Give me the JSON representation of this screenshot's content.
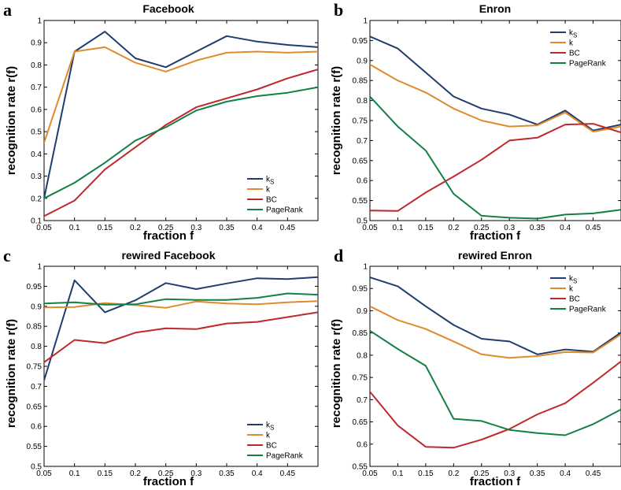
{
  "colors": {
    "ks": "#1f3e6e",
    "k": "#e08a2e",
    "BC": "#c0282b",
    "PageRank": "#138045"
  },
  "chart_data": [
    {
      "panel": "a",
      "type": "line",
      "title": "Facebook",
      "xlabel": "fraction f",
      "ylabel": "recognition rate r(f)",
      "xlim": [
        0.05,
        0.5
      ],
      "ylim": [
        0.1,
        1.0
      ],
      "xticks": [
        "0.05",
        "0.1",
        "0.15",
        "0.2",
        "0.25",
        "0.3",
        "0.35",
        "0.4",
        "0.45"
      ],
      "yticks": [
        "0.1",
        "0.2",
        "0.3",
        "0.4",
        "0.5",
        "0.6",
        "0.7",
        "0.8",
        "0.9",
        "1"
      ],
      "legend_position": "bottom-right",
      "x": [
        0.05,
        0.1,
        0.15,
        0.2,
        0.25,
        0.3,
        0.35,
        0.4,
        0.45,
        0.5
      ],
      "series": [
        {
          "name": "k",
          "sub": "S",
          "key": "ks",
          "values": [
            0.2,
            0.86,
            0.95,
            0.83,
            0.79,
            0.86,
            0.93,
            0.905,
            0.89,
            0.88
          ]
        },
        {
          "name": "k",
          "sub": "",
          "key": "k",
          "values": [
            0.45,
            0.86,
            0.88,
            0.81,
            0.77,
            0.82,
            0.855,
            0.86,
            0.855,
            0.86
          ]
        },
        {
          "name": "BC",
          "sub": "",
          "key": "BC",
          "values": [
            0.12,
            0.19,
            0.33,
            0.43,
            0.53,
            0.61,
            0.65,
            0.69,
            0.74,
            0.78
          ]
        },
        {
          "name": "PageRank",
          "sub": "",
          "key": "PageRank",
          "values": [
            0.2,
            0.27,
            0.36,
            0.46,
            0.52,
            0.595,
            0.635,
            0.66,
            0.675,
            0.7
          ]
        }
      ]
    },
    {
      "panel": "b",
      "type": "line",
      "title": "Enron",
      "xlabel": "fraction f",
      "ylabel": "recognition rate r(f)",
      "xlim": [
        0.05,
        0.5
      ],
      "ylim": [
        0.5,
        1.0
      ],
      "xticks": [
        "0.05",
        "0.1",
        "0.15",
        "0.2",
        "0.25",
        "0.3",
        "0.35",
        "0.4",
        "0.45"
      ],
      "yticks": [
        "0.5",
        "0.55",
        "0.6",
        "0.65",
        "0.7",
        "0.75",
        "0.8",
        "0.85",
        "0.9",
        "0.95",
        "1"
      ],
      "legend_position": "top-right",
      "x": [
        0.05,
        0.1,
        0.15,
        0.2,
        0.25,
        0.3,
        0.35,
        0.4,
        0.45,
        0.5
      ],
      "series": [
        {
          "name": "k",
          "sub": "S",
          "key": "ks",
          "values": [
            0.96,
            0.93,
            0.87,
            0.81,
            0.78,
            0.765,
            0.74,
            0.775,
            0.725,
            0.74
          ]
        },
        {
          "name": "k",
          "sub": "",
          "key": "k",
          "values": [
            0.89,
            0.85,
            0.82,
            0.78,
            0.75,
            0.735,
            0.738,
            0.77,
            0.722,
            0.735
          ]
        },
        {
          "name": "BC",
          "sub": "",
          "key": "BC",
          "values": [
            0.525,
            0.524,
            0.57,
            0.61,
            0.652,
            0.7,
            0.707,
            0.74,
            0.742,
            0.72
          ]
        },
        {
          "name": "PageRank",
          "sub": "",
          "key": "PageRank",
          "values": [
            0.81,
            0.735,
            0.675,
            0.567,
            0.512,
            0.507,
            0.505,
            0.515,
            0.518,
            0.527
          ]
        }
      ]
    },
    {
      "panel": "c",
      "type": "line",
      "title": "rewired Facebook",
      "xlabel": "fraction f",
      "ylabel": "recognition rate r(f)",
      "xlim": [
        0.05,
        0.5
      ],
      "ylim": [
        0.5,
        1.0
      ],
      "xticks": [
        "0.05",
        "0.1",
        "0.15",
        "0.2",
        "0.25",
        "0.3",
        "0.35",
        "0.4",
        "0.45"
      ],
      "yticks": [
        "0.5",
        "0.55",
        "0.6",
        "0.65",
        "0.7",
        "0.75",
        "0.8",
        "0.85",
        "0.9",
        "0.95",
        "1"
      ],
      "legend_position": "bottom-right",
      "x": [
        0.05,
        0.1,
        0.15,
        0.2,
        0.25,
        0.3,
        0.35,
        0.4,
        0.45,
        0.5
      ],
      "series": [
        {
          "name": "k",
          "sub": "S",
          "key": "ks",
          "values": [
            0.715,
            0.965,
            0.885,
            0.915,
            0.958,
            0.943,
            0.957,
            0.97,
            0.968,
            0.973
          ]
        },
        {
          "name": "k",
          "sub": "",
          "key": "k",
          "values": [
            0.897,
            0.898,
            0.908,
            0.903,
            0.896,
            0.912,
            0.907,
            0.905,
            0.91,
            0.913
          ]
        },
        {
          "name": "BC",
          "sub": "",
          "key": "BC",
          "values": [
            0.76,
            0.816,
            0.808,
            0.834,
            0.845,
            0.843,
            0.857,
            0.861,
            0.873,
            0.885
          ]
        },
        {
          "name": "PageRank",
          "sub": "",
          "key": "PageRank",
          "values": [
            0.907,
            0.91,
            0.904,
            0.905,
            0.918,
            0.916,
            0.916,
            0.921,
            0.932,
            0.929
          ]
        }
      ]
    },
    {
      "panel": "d",
      "type": "line",
      "title": "rewired Enron",
      "xlabel": "fraction f",
      "ylabel": "recognition rate r(f)",
      "xlim": [
        0.05,
        0.5
      ],
      "ylim": [
        0.55,
        1.0
      ],
      "xticks": [
        "0.05",
        "0.1",
        "0.15",
        "0.2",
        "0.25",
        "0.3",
        "0.35",
        "0.4",
        "0.45"
      ],
      "yticks": [
        "0.55",
        "0.6",
        "0.65",
        "0.7",
        "0.75",
        "0.8",
        "0.85",
        "0.9",
        "0.95",
        "1"
      ],
      "legend_position": "top-right",
      "x": [
        0.05,
        0.1,
        0.15,
        0.2,
        0.25,
        0.3,
        0.35,
        0.4,
        0.45,
        0.5
      ],
      "series": [
        {
          "name": "k",
          "sub": "S",
          "key": "ks",
          "values": [
            0.975,
            0.955,
            0.91,
            0.868,
            0.837,
            0.831,
            0.802,
            0.813,
            0.808,
            0.851
          ]
        },
        {
          "name": "k",
          "sub": "",
          "key": "k",
          "values": [
            0.91,
            0.879,
            0.859,
            0.831,
            0.802,
            0.794,
            0.798,
            0.807,
            0.806,
            0.847
          ]
        },
        {
          "name": "BC",
          "sub": "",
          "key": "BC",
          "values": [
            0.718,
            0.642,
            0.594,
            0.592,
            0.61,
            0.634,
            0.667,
            0.692,
            0.738,
            0.786
          ]
        },
        {
          "name": "PageRank",
          "sub": "",
          "key": "PageRank",
          "values": [
            0.855,
            0.814,
            0.776,
            0.657,
            0.652,
            0.632,
            0.625,
            0.62,
            0.645,
            0.678
          ]
        }
      ]
    }
  ]
}
